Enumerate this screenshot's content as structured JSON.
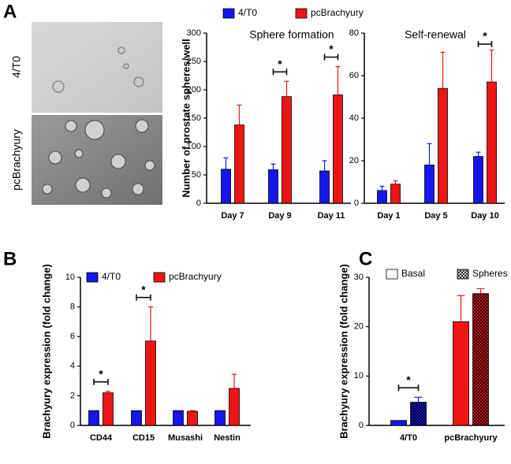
{
  "panel_a_images": [
    "4/T0",
    "pcBrachyury"
  ],
  "chart_data": [
    {
      "type": "bar",
      "panel": "A",
      "title": "Sphere formation",
      "y_label": "Number of prostate spheres/well",
      "legend": true,
      "categories": [
        "Day 7",
        "Day 9",
        "Day 11"
      ],
      "series": [
        {
          "name": "4/T0",
          "color": "#1515f0",
          "values": [
            60,
            59,
            57
          ],
          "errors": [
            20,
            10,
            18
          ]
        },
        {
          "name": "pcBrachyury",
          "color": "#ee1515",
          "values": [
            138,
            188,
            191
          ],
          "errors": [
            35,
            27,
            50
          ]
        }
      ],
      "ylim": [
        0,
        300
      ],
      "yticks": [
        0,
        50,
        100,
        150,
        200,
        250,
        300
      ],
      "annotations": [
        {
          "text": "*",
          "category": "Day 9"
        },
        {
          "text": "*",
          "category": "Day 11"
        }
      ]
    },
    {
      "type": "bar",
      "title": "Self-renewal",
      "legend": false,
      "categories": [
        "Day 1",
        "Day 5",
        "Day 10"
      ],
      "series": [
        {
          "name": "4/T0",
          "color": "#1515f0",
          "values": [
            6,
            18,
            22
          ],
          "errors": [
            2,
            10,
            2
          ]
        },
        {
          "name": "pcBrachyury",
          "color": "#ee1515",
          "values": [
            9,
            54,
            57
          ],
          "errors": [
            1.5,
            17,
            15
          ]
        }
      ],
      "ylim": [
        0,
        80
      ],
      "yticks": [
        0,
        20,
        40,
        60,
        80
      ],
      "annotations": [
        {
          "text": "*",
          "category": "Day 10"
        }
      ]
    },
    {
      "type": "bar",
      "panel": "B",
      "y_label": "Brachyury expression (fold change)",
      "legend": true,
      "categories": [
        "CD44",
        "CD15",
        "Musashi",
        "Nestin"
      ],
      "series": [
        {
          "name": "4/T0",
          "color": "#1515f0",
          "values": [
            1,
            1,
            1,
            1
          ],
          "errors": [
            0,
            0,
            0,
            0
          ]
        },
        {
          "name": "pcBrachyury",
          "color": "#ee1515",
          "values": [
            2.2,
            5.7,
            0.95,
            2.5
          ],
          "errors": [
            0.1,
            2.3,
            0.05,
            0.95
          ]
        }
      ],
      "ylim": [
        0,
        10
      ],
      "yticks": [
        0,
        2,
        4,
        6,
        8,
        10
      ],
      "annotations": [
        {
          "text": "*",
          "category": "CD44"
        },
        {
          "text": "*",
          "category": "CD15"
        }
      ]
    },
    {
      "type": "bar",
      "panel": "C",
      "y_label": "Brachyury expression (fold change)",
      "legend": true,
      "categories": [
        "4/T0",
        "pcBrachyury"
      ],
      "category_colors": [
        "#1515f0",
        "#ee1515"
      ],
      "series": [
        {
          "name": "Basal",
          "color": "#ffffff",
          "fill_style": "solid",
          "values": [
            1,
            21
          ],
          "errors": [
            0,
            5.3
          ]
        },
        {
          "name": "Spheres",
          "color": "#ffffff",
          "fill_style": "crosshatch",
          "values": [
            4.7,
            26.7
          ],
          "errors": [
            1,
            1
          ]
        }
      ],
      "ylim": [
        0,
        30
      ],
      "yticks": [
        0,
        10,
        20,
        30
      ],
      "annotations": [
        {
          "text": "*",
          "category": "4/T0"
        }
      ]
    }
  ]
}
